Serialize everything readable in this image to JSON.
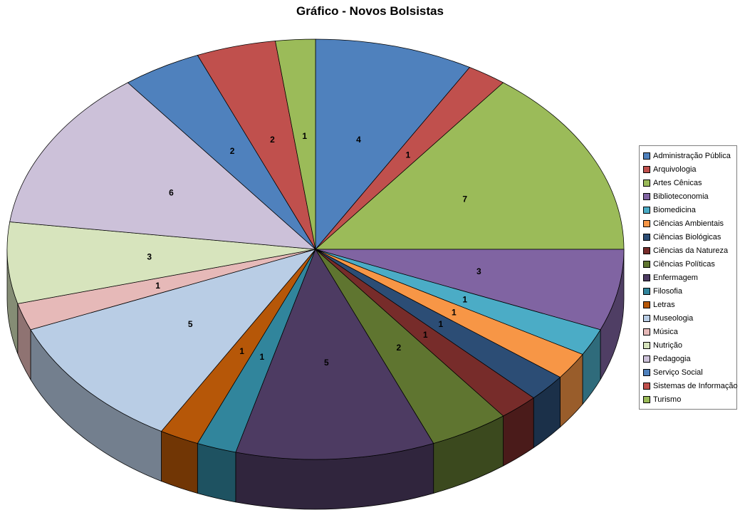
{
  "title": "Gráfico - Novos Bolsistas",
  "chart_data": {
    "type": "pie",
    "style": "3d-pie",
    "title": "Gráfico - Novos Bolsistas",
    "legend_position": "right",
    "data_labels": "value",
    "start_angle_deg": 0,
    "direction": "clockwise",
    "total": 48,
    "categories": [
      "Administração Pública",
      "Arquivologia",
      "Artes Cênicas",
      "Biblioteconomia",
      "Biomedicina",
      "Ciências Ambientais",
      "Ciências Biológicas",
      "Ciências da Natureza",
      "Ciências Políticas",
      "Enfermagem",
      "Filosofia",
      "Letras",
      "Museologia",
      "Música",
      "Nutrição",
      "Pedagogia",
      "Serviço Social",
      "Sistemas de Informação",
      "Turismo"
    ],
    "values": [
      4,
      1,
      7,
      3,
      1,
      1,
      1,
      1,
      2,
      5,
      1,
      1,
      5,
      1,
      3,
      6,
      2,
      2,
      1
    ],
    "colors": [
      "#4F81BD",
      "#C0504D",
      "#9BBB59",
      "#8064A2",
      "#4BACC6",
      "#F79646",
      "#2C4D75",
      "#772C2A",
      "#5F7530",
      "#4D3B62",
      "#31859C",
      "#B65708",
      "#B9CDE5",
      "#E6B9B8",
      "#D7E4BD",
      "#CCC1D9",
      "#4F81BD",
      "#C0504D",
      "#9BBB59"
    ]
  }
}
